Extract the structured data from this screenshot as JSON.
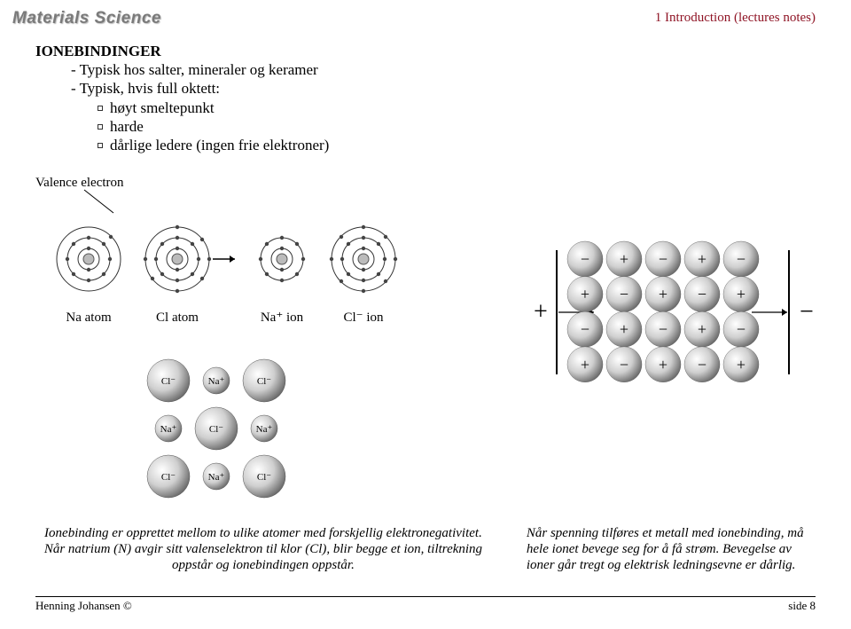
{
  "header": {
    "brand": "Materials Science",
    "breadcrumb": "1 Introduction (lectures notes)"
  },
  "title": "IONEBINDINGER",
  "bullets": [
    "Typisk hos salter, mineraler og keramer",
    "Typisk, hvis full oktett:"
  ],
  "sub_bullets": [
    "høyt smeltepunkt",
    "harde",
    "dårlige ledere (ingen frie elektroner)"
  ],
  "atom_diagram": {
    "valence_label": "Valence electron",
    "labels": [
      "Na atom",
      "Cl atom",
      "Na⁺ ion",
      "Cl⁻ ion"
    ],
    "arrow_color": "#000000"
  },
  "nacl_lattice": {
    "ions": [
      [
        "Cl⁻",
        "Na⁺",
        "Cl⁻"
      ],
      [
        "Na⁺",
        "Cl⁻",
        "Na⁺"
      ],
      [
        "Cl⁻",
        "Na⁺",
        "Cl⁻"
      ]
    ]
  },
  "ion_grid": {
    "rows": 4,
    "cols": 5,
    "start_sign": "-",
    "plus_label": "+",
    "minus_label": "−",
    "outer_plus": "+",
    "outer_minus": "−"
  },
  "captions": {
    "left": "Ionebinding er opprettet mellom to ulike atomer med forskjellig elektronegativitet. Når natrium (N) avgir sitt valenselektron til klor (Cl), blir begge et ion, tiltrekning oppstår og ionebindingen oppstår.",
    "right": "Når spenning tilføres et metall med ionebinding, må hele ionet bevege seg for å få strøm. Bevegelse av ioner går tregt og elektrisk ledningsevne er dårlig."
  },
  "footer": {
    "left": "Henning Johansen ©",
    "right": "side 8"
  },
  "colors": {
    "breadcrumb": "#8f1425",
    "text": "#000000",
    "page_bg": "#ffffff",
    "sphere_border": "#666666"
  }
}
